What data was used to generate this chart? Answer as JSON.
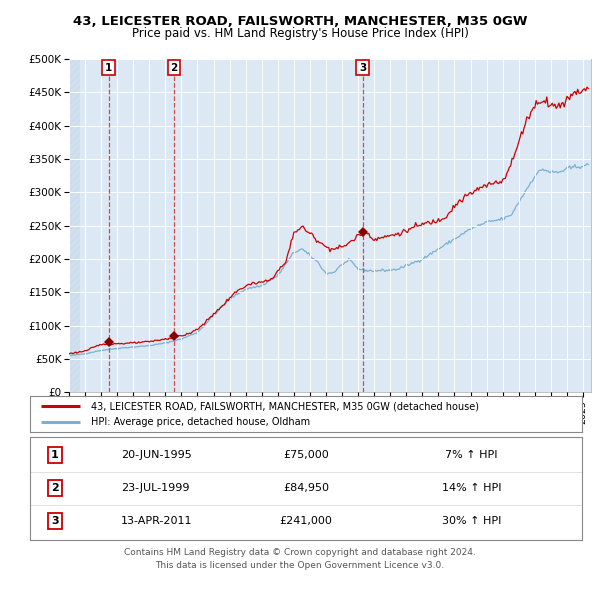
{
  "title1": "43, LEICESTER ROAD, FAILSWORTH, MANCHESTER, M35 0GW",
  "title2": "Price paid vs. HM Land Registry's House Price Index (HPI)",
  "bg_color": "#dce9f5",
  "fig_bg_color": "#ffffff",
  "red_line_color": "#cc0000",
  "blue_line_color": "#7bafd4",
  "marker_color": "#880000",
  "vline_color": "#cc3333",
  "grid_color": "#ffffff",
  "hatch_color": "#c8d8e8",
  "sale_prices": [
    75000,
    84950,
    241000
  ],
  "sale_labels": [
    "1",
    "2",
    "3"
  ],
  "sale_pct": [
    "7%",
    "14%",
    "30%"
  ],
  "sale_display_dates": [
    "20-JUN-1995",
    "23-JUL-1999",
    "13-APR-2011"
  ],
  "sale_year_floats": [
    1995.46,
    1999.55,
    2011.28
  ],
  "legend_red": "43, LEICESTER ROAD, FAILSWORTH, MANCHESTER, M35 0GW (detached house)",
  "legend_blue": "HPI: Average price, detached house, Oldham",
  "footer1": "Contains HM Land Registry data © Crown copyright and database right 2024.",
  "footer2": "This data is licensed under the Open Government Licence v3.0.",
  "ylim": [
    0,
    500000
  ],
  "yticks": [
    0,
    50000,
    100000,
    150000,
    200000,
    250000,
    300000,
    350000,
    400000,
    450000,
    500000
  ],
  "xstart": 1993.0,
  "xend": 2025.5
}
